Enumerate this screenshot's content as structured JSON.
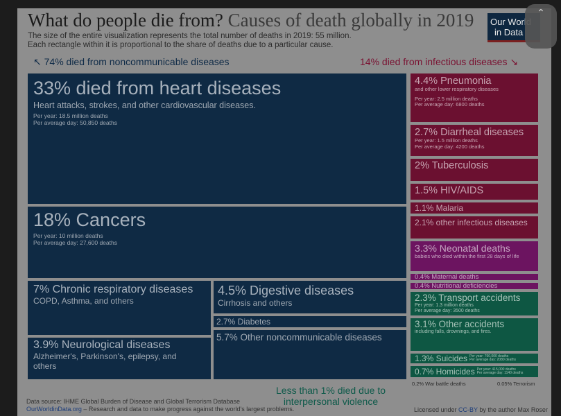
{
  "header": {
    "title_main": "What do people die from?",
    "title_rest": "Causes of death globally in 2019",
    "subtitle_1": "The size of the entire visualization represents the total number of deaths in 2019: 55 million.",
    "subtitle_2": "Each rectangle within it is proportional to the share of deaths due to a particular cause.",
    "logo_line1": "Our World",
    "logo_line2": "in Data"
  },
  "group_labels": {
    "noncommunicable": "74% died from noncommunicable diseases",
    "infectious": "14% died from infectious diseases",
    "interpersonal_1": "Less than 1% died due to",
    "interpersonal_2": "interpersonal violence"
  },
  "chart_data": {
    "type": "treemap",
    "title": "What do people die from? Causes of death globally in 2019",
    "total_deaths": "55 million",
    "cells": [
      {
        "id": "heart",
        "category": "noncommunicable",
        "share_pct": 33,
        "title": "33% died from heart diseases",
        "description": "Heart attacks, strokes, and other cardiovascular diseases.",
        "per_year": "Per year: 18.5 million deaths",
        "per_day": "Per average day: 50,850 deaths"
      },
      {
        "id": "cancers",
        "category": "noncommunicable",
        "share_pct": 18,
        "title": "18% Cancers",
        "description": "",
        "per_year": "Per year: 10 million deaths",
        "per_day": "Per average day: 27,600 deaths"
      },
      {
        "id": "chronic_resp",
        "category": "noncommunicable",
        "share_pct": 7,
        "title": "7% Chronic respiratory diseases",
        "description": "COPD, Asthma, and others",
        "per_year": "",
        "per_day": ""
      },
      {
        "id": "neuro",
        "category": "noncommunicable",
        "share_pct": 3.9,
        "title": "3.9% Neurological diseases",
        "description": "Alzheimer's, Parkinson's, epilepsy, and others",
        "per_year": "",
        "per_day": ""
      },
      {
        "id": "digestive",
        "category": "noncommunicable",
        "share_pct": 4.5,
        "title": "4.5% Digestive diseases",
        "description": "Cirrhosis and others",
        "per_year": "",
        "per_day": ""
      },
      {
        "id": "diabetes",
        "category": "noncommunicable",
        "share_pct": 2.7,
        "title": "2.7% Diabetes",
        "description": "",
        "per_year": "",
        "per_day": ""
      },
      {
        "id": "other_nc",
        "category": "noncommunicable",
        "share_pct": 5.7,
        "title": "5.7% Other noncommunicable diseases",
        "description": "",
        "per_year": "",
        "per_day": ""
      },
      {
        "id": "pneumonia",
        "category": "infectious",
        "share_pct": 4.4,
        "title": "4.4% Pneumonia",
        "description": "and other lower respiratory diseases",
        "per_year": "Per year: 2.5 million deaths",
        "per_day": "Per average day: 6800 deaths"
      },
      {
        "id": "diarrheal",
        "category": "infectious",
        "share_pct": 2.7,
        "title": "2.7% Diarrheal diseases",
        "description": "",
        "per_year": "Per year: 1.5 million deaths",
        "per_day": "Per average day: 4200 deaths"
      },
      {
        "id": "tb",
        "category": "infectious",
        "share_pct": 2,
        "title": "2% Tuberculosis",
        "description": "",
        "per_year": "",
        "per_day": ""
      },
      {
        "id": "hiv",
        "category": "infectious",
        "share_pct": 1.5,
        "title": "1.5% HIV/AIDS",
        "description": "",
        "per_year": "",
        "per_day": ""
      },
      {
        "id": "malaria",
        "category": "infectious",
        "share_pct": 1.1,
        "title": "1.1% Malaria",
        "description": "",
        "per_year": "",
        "per_day": ""
      },
      {
        "id": "other_inf",
        "category": "infectious",
        "share_pct": 2.1,
        "title": "2.1% other infectious diseases",
        "description": "",
        "per_year": "",
        "per_day": ""
      },
      {
        "id": "neonatal",
        "category": "neonatal",
        "share_pct": 3.3,
        "title": "3.3% Neonatal deaths",
        "description": "babies who died within the first 28 days of life",
        "per_year": "",
        "per_day": ""
      },
      {
        "id": "maternal",
        "category": "neonatal",
        "share_pct": 0.4,
        "title": "0.4% Maternal deaths",
        "description": "",
        "per_year": "",
        "per_day": ""
      },
      {
        "id": "nutritional",
        "category": "neonatal",
        "share_pct": 0.4,
        "title": "0.4% Nutritional deficiencies",
        "description": "",
        "per_year": "",
        "per_day": ""
      },
      {
        "id": "transport",
        "category": "injuries",
        "share_pct": 2.3,
        "title": "2.3% Transport accidents",
        "description": "",
        "per_year": "Per year: 1.3 million deaths",
        "per_day": "Per average day: 3500 deaths"
      },
      {
        "id": "other_acc",
        "category": "injuries",
        "share_pct": 3.1,
        "title": "3.1% Other accidents",
        "description": "including falls, drownings, and fires.",
        "per_year": "",
        "per_day": ""
      },
      {
        "id": "suicides",
        "category": "injuries",
        "share_pct": 1.3,
        "title": "1.3% Suicides",
        "description": "",
        "per_year": "Per year: 760,000 deaths",
        "per_day": "Per average day: 2080 deaths"
      },
      {
        "id": "homicides",
        "category": "injuries",
        "share_pct": 0.7,
        "title": "0.7% Homicides",
        "description": "",
        "per_year": "Per year: 415,000 deaths",
        "per_day": "Per average day: 1140 deaths"
      }
    ],
    "small_labels": [
      "0.2% War battle deaths",
      "0.05% Terrorism"
    ],
    "colors": {
      "noncommunicable": "#0f2a44",
      "infectious": "#6b1030",
      "neonatal": "#6c1460",
      "injuries": "#0e5743"
    }
  },
  "footer": {
    "source": "Data source: IHME Global Burden of Disease and Global Terrorism Database",
    "site_link": "OurWorldinData.org",
    "site_text": " – Research and data to make progress against the world's largest problems.",
    "license_prefix": "Licensed under ",
    "license_link": "CC-BY",
    "license_suffix": " by the author Max Roser"
  },
  "overlay": {
    "close_icon": "chevron-up-icon",
    "close_glyph": "⌃"
  }
}
